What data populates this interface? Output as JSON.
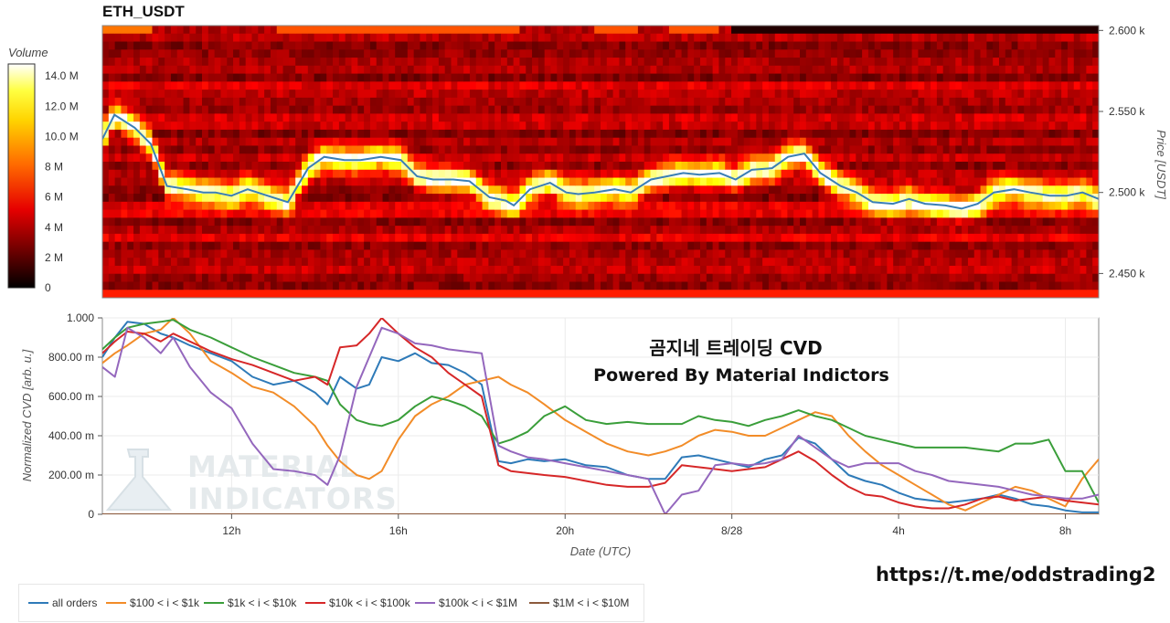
{
  "symbol_title": "ETH_USDT",
  "watermark": {
    "logo_lines": [
      "MATERIAL",
      "INDICATORS"
    ],
    "overlay_title": "곰지네 트레이딩 CVD",
    "overlay_subtitle": "Powered By Material Indictors",
    "url": "https://t.me/oddstrading2"
  },
  "chart_data": [
    {
      "type": "heatmap",
      "title": "ETH_USDT",
      "colorbar": {
        "label": "Volume",
        "ticks": [
          "0",
          "2 M",
          "4 M",
          "6 M",
          "8 M",
          "10.0 M",
          "12.0 M",
          "14.0 M"
        ],
        "tick_values": [
          0,
          2000000,
          4000000,
          6000000,
          8000000,
          10000000,
          12000000,
          14000000
        ],
        "range": [
          0,
          14800000
        ],
        "colormap": "black-red-orange-yellow-white"
      },
      "ylabel": "Price [USDT]",
      "y_ticks": [
        "2.450 k",
        "2.500 k",
        "2.550 k",
        "2.600 k"
      ],
      "y_tick_values": [
        2450,
        2500,
        2550,
        2600
      ],
      "ylim": [
        2435,
        2603
      ],
      "x_tick_values": [
        7.3,
        10.2,
        15.5,
        17.0,
        18.4,
        19.6,
        20.5,
        22.8,
        24.6,
        30.0
      ],
      "xlim": [
        8.2,
        32.9
      ],
      "price_line": {
        "name": "price",
        "color": "#3a7fb5",
        "x": [
          8.2,
          8.5,
          9.0,
          9.4,
          9.8,
          10.3,
          10.7,
          11.0,
          11.4,
          11.8,
          12.3,
          12.8,
          13.3,
          13.7,
          14.2,
          14.6,
          15.1,
          15.6,
          16.0,
          16.4,
          16.9,
          17.3,
          17.8,
          18.2,
          18.4,
          18.8,
          19.3,
          19.7,
          20.0,
          20.4,
          20.9,
          21.3,
          21.8,
          22.2,
          22.6,
          23.0,
          23.5,
          23.9,
          24.3,
          24.8,
          25.2,
          25.6,
          26.0,
          26.5,
          26.9,
          27.3,
          27.8,
          28.2,
          28.6,
          29.1,
          29.5,
          29.9,
          30.3,
          30.8,
          31.2,
          31.7,
          32.1,
          32.5,
          32.9
        ],
        "y": [
          2533,
          2548,
          2540,
          2530,
          2504,
          2502,
          2500,
          2500,
          2498,
          2502,
          2498,
          2494,
          2515,
          2522,
          2520,
          2520,
          2522,
          2520,
          2510,
          2508,
          2508,
          2507,
          2497,
          2495,
          2492,
          2502,
          2506,
          2500,
          2499,
          2500,
          2502,
          2500,
          2508,
          2510,
          2512,
          2511,
          2512,
          2508,
          2514,
          2515,
          2522,
          2524,
          2512,
          2504,
          2500,
          2494,
          2493,
          2496,
          2493,
          2492,
          2490,
          2493,
          2500,
          2502,
          2500,
          2498,
          2498,
          2500,
          2496
        ]
      }
    },
    {
      "type": "line",
      "xlabel": "Date (UTC)",
      "ylabel": "Normalized CVD [arb. u.]",
      "x_ticks": [
        "12h",
        "16h",
        "20h",
        "8/28",
        "4h",
        "8h"
      ],
      "x_tick_values": [
        12,
        16,
        20,
        24,
        28,
        32
      ],
      "xlim": [
        8.9,
        32.8
      ],
      "y_ticks": [
        "0",
        "200.00 m",
        "400.00 m",
        "600.00 m",
        "800.00 m",
        "1.000"
      ],
      "y_tick_values": [
        0,
        0.2,
        0.4,
        0.6,
        0.8,
        1.0
      ],
      "ylim": [
        0,
        1.0
      ],
      "grid": true,
      "legend_position": "bottom-left",
      "series": [
        {
          "name": "all orders",
          "color": "#2e7ab8",
          "x": [
            8.9,
            9.2,
            9.5,
            9.9,
            10.3,
            10.6,
            11.0,
            11.5,
            12.0,
            12.5,
            13.0,
            13.5,
            14.0,
            14.3,
            14.6,
            15.0,
            15.3,
            15.6,
            16.0,
            16.4,
            16.8,
            17.2,
            17.6,
            18.0,
            18.4,
            18.7,
            19.1,
            19.5,
            20.0,
            20.5,
            21.0,
            21.5,
            22.0,
            22.4,
            22.8,
            23.2,
            23.6,
            24.0,
            24.4,
            24.8,
            25.2,
            25.6,
            26.0,
            26.4,
            26.8,
            27.2,
            27.6,
            28.0,
            28.4,
            28.8,
            29.2,
            29.6,
            30.0,
            30.4,
            30.8,
            31.2,
            31.6,
            32.0,
            32.4,
            32.8
          ],
          "y": [
            0.8,
            0.9,
            0.98,
            0.97,
            0.92,
            0.9,
            0.86,
            0.82,
            0.78,
            0.7,
            0.66,
            0.68,
            0.62,
            0.56,
            0.7,
            0.64,
            0.66,
            0.8,
            0.78,
            0.82,
            0.77,
            0.76,
            0.72,
            0.66,
            0.27,
            0.26,
            0.28,
            0.27,
            0.28,
            0.25,
            0.24,
            0.2,
            0.18,
            0.18,
            0.29,
            0.3,
            0.28,
            0.26,
            0.24,
            0.28,
            0.3,
            0.39,
            0.36,
            0.28,
            0.2,
            0.17,
            0.15,
            0.11,
            0.08,
            0.07,
            0.06,
            0.07,
            0.08,
            0.1,
            0.08,
            0.05,
            0.04,
            0.02,
            0.01,
            0.01
          ]
        },
        {
          "name": "$100 < i < $1k",
          "color": "#f28c28",
          "x": [
            8.9,
            9.2,
            9.5,
            9.9,
            10.3,
            10.6,
            11.0,
            11.5,
            12.0,
            12.5,
            13.0,
            13.5,
            14.0,
            14.3,
            14.6,
            15.0,
            15.3,
            15.6,
            16.0,
            16.4,
            16.8,
            17.2,
            17.6,
            18.0,
            18.4,
            18.7,
            19.1,
            19.5,
            20.0,
            20.5,
            21.0,
            21.5,
            22.0,
            22.4,
            22.8,
            23.2,
            23.6,
            24.0,
            24.4,
            24.8,
            25.2,
            25.6,
            26.0,
            26.4,
            26.8,
            27.2,
            27.6,
            28.0,
            28.4,
            28.8,
            29.2,
            29.6,
            30.0,
            30.4,
            30.8,
            31.2,
            31.6,
            32.0,
            32.4,
            32.8
          ],
          "y": [
            0.77,
            0.82,
            0.86,
            0.92,
            0.94,
            1.0,
            0.92,
            0.78,
            0.72,
            0.65,
            0.62,
            0.55,
            0.45,
            0.35,
            0.27,
            0.2,
            0.18,
            0.22,
            0.38,
            0.5,
            0.56,
            0.6,
            0.66,
            0.68,
            0.7,
            0.66,
            0.62,
            0.56,
            0.48,
            0.42,
            0.36,
            0.32,
            0.3,
            0.32,
            0.35,
            0.4,
            0.43,
            0.42,
            0.4,
            0.4,
            0.44,
            0.48,
            0.52,
            0.5,
            0.4,
            0.32,
            0.25,
            0.2,
            0.15,
            0.1,
            0.05,
            0.02,
            0.06,
            0.1,
            0.14,
            0.12,
            0.08,
            0.04,
            0.18,
            0.28
          ]
        },
        {
          "name": "$1k < i < $10k",
          "color": "#3a9e3a",
          "x": [
            8.9,
            9.2,
            9.5,
            9.9,
            10.3,
            10.6,
            11.0,
            11.5,
            12.0,
            12.5,
            13.0,
            13.5,
            14.0,
            14.3,
            14.6,
            15.0,
            15.3,
            15.6,
            16.0,
            16.4,
            16.8,
            17.2,
            17.6,
            18.0,
            18.4,
            18.7,
            19.1,
            19.5,
            20.0,
            20.5,
            21.0,
            21.5,
            22.0,
            22.4,
            22.8,
            23.2,
            23.6,
            24.0,
            24.4,
            24.8,
            25.2,
            25.6,
            26.0,
            26.4,
            26.8,
            27.2,
            27.6,
            28.0,
            28.4,
            28.8,
            29.2,
            29.6,
            30.0,
            30.4,
            30.8,
            31.2,
            31.6,
            32.0,
            32.4,
            32.8
          ],
          "y": [
            0.84,
            0.9,
            0.95,
            0.97,
            0.98,
            0.99,
            0.94,
            0.9,
            0.85,
            0.8,
            0.76,
            0.72,
            0.7,
            0.68,
            0.56,
            0.48,
            0.46,
            0.45,
            0.48,
            0.55,
            0.6,
            0.58,
            0.55,
            0.5,
            0.36,
            0.38,
            0.42,
            0.5,
            0.55,
            0.48,
            0.46,
            0.47,
            0.46,
            0.46,
            0.46,
            0.5,
            0.48,
            0.47,
            0.45,
            0.48,
            0.5,
            0.53,
            0.5,
            0.48,
            0.44,
            0.4,
            0.38,
            0.36,
            0.34,
            0.34,
            0.34,
            0.34,
            0.33,
            0.32,
            0.36,
            0.36,
            0.38,
            0.22,
            0.22,
            0.06
          ]
        },
        {
          "name": "$10k < i < $100k",
          "color": "#d62728",
          "x": [
            8.9,
            9.2,
            9.5,
            9.9,
            10.3,
            10.6,
            11.0,
            11.5,
            12.0,
            12.5,
            13.0,
            13.5,
            14.0,
            14.3,
            14.6,
            15.0,
            15.3,
            15.6,
            16.0,
            16.4,
            16.8,
            17.2,
            17.6,
            18.0,
            18.4,
            18.7,
            19.1,
            19.5,
            20.0,
            20.5,
            21.0,
            21.5,
            22.0,
            22.4,
            22.8,
            23.2,
            23.6,
            24.0,
            24.4,
            24.8,
            25.2,
            25.6,
            26.0,
            26.4,
            26.8,
            27.2,
            27.6,
            28.0,
            28.4,
            28.8,
            29.2,
            29.6,
            30.0,
            30.4,
            30.8,
            31.2,
            31.6,
            32.0,
            32.4,
            32.8
          ],
          "y": [
            0.82,
            0.88,
            0.93,
            0.92,
            0.88,
            0.92,
            0.88,
            0.83,
            0.79,
            0.76,
            0.72,
            0.68,
            0.7,
            0.66,
            0.85,
            0.86,
            0.92,
            1.0,
            0.92,
            0.85,
            0.8,
            0.72,
            0.66,
            0.6,
            0.25,
            0.22,
            0.21,
            0.2,
            0.19,
            0.17,
            0.15,
            0.14,
            0.14,
            0.16,
            0.25,
            0.24,
            0.23,
            0.22,
            0.23,
            0.24,
            0.28,
            0.32,
            0.27,
            0.2,
            0.14,
            0.1,
            0.09,
            0.06,
            0.04,
            0.03,
            0.03,
            0.05,
            0.08,
            0.09,
            0.07,
            0.08,
            0.09,
            0.07,
            0.06,
            0.05
          ]
        },
        {
          "name": "$100k < i < $1M",
          "color": "#9467bd",
          "x": [
            8.9,
            9.2,
            9.5,
            9.9,
            10.3,
            10.6,
            11.0,
            11.5,
            12.0,
            12.5,
            13.0,
            13.5,
            14.0,
            14.3,
            14.6,
            15.0,
            15.3,
            15.6,
            16.0,
            16.4,
            16.8,
            17.2,
            17.6,
            18.0,
            18.4,
            18.7,
            19.1,
            19.5,
            20.0,
            20.5,
            21.0,
            21.5,
            22.0,
            22.4,
            22.8,
            23.2,
            23.6,
            24.0,
            24.4,
            24.8,
            25.2,
            25.6,
            26.0,
            26.4,
            26.8,
            27.2,
            27.6,
            28.0,
            28.4,
            28.8,
            29.2,
            29.6,
            30.0,
            30.4,
            30.8,
            31.2,
            31.6,
            32.0,
            32.4,
            32.8
          ],
          "y": [
            0.75,
            0.7,
            0.95,
            0.9,
            0.82,
            0.9,
            0.75,
            0.62,
            0.54,
            0.36,
            0.23,
            0.22,
            0.2,
            0.15,
            0.3,
            0.65,
            0.8,
            0.95,
            0.92,
            0.87,
            0.86,
            0.84,
            0.83,
            0.82,
            0.35,
            0.32,
            0.29,
            0.28,
            0.26,
            0.24,
            0.22,
            0.2,
            0.18,
            0.0,
            0.1,
            0.12,
            0.25,
            0.26,
            0.25,
            0.26,
            0.28,
            0.4,
            0.34,
            0.28,
            0.24,
            0.26,
            0.26,
            0.26,
            0.22,
            0.2,
            0.17,
            0.16,
            0.15,
            0.14,
            0.12,
            0.1,
            0.09,
            0.08,
            0.08,
            0.1
          ]
        },
        {
          "name": "$1M < i < $10M",
          "color": "#8c5a3c",
          "x": [
            8.9,
            32.8
          ],
          "y": [
            0.0,
            0.0
          ]
        }
      ]
    }
  ]
}
